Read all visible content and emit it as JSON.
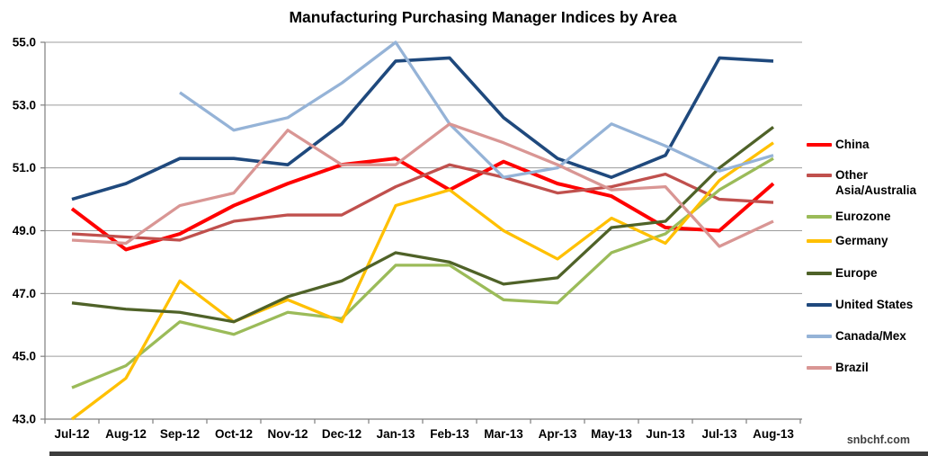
{
  "watermark": "snbchf.com",
  "chart_data": {
    "type": "line",
    "title": "Manufacturing Purchasing Manager Indices by Area",
    "xlabel": "",
    "ylabel": "",
    "grid": true,
    "legend_position": "right",
    "categories": [
      "Jul-12",
      "Aug-12",
      "Sep-12",
      "Oct-12",
      "Nov-12",
      "Dec-12",
      "Jan-13",
      "Feb-13",
      "Mar-13",
      "Apr-13",
      "May-13",
      "Jun-13",
      "Jul-13",
      "Aug-13"
    ],
    "y_axis": {
      "min": 43.0,
      "max": 55.0,
      "tick_interval": 2.0,
      "tick_labels": [
        "55.0",
        "53.0",
        "51.0",
        "49.0",
        "47.0",
        "45.0",
        "43.0"
      ]
    },
    "series": [
      {
        "name": "China",
        "color": "#FF0000",
        "width": 4,
        "values": [
          49.7,
          48.4,
          48.9,
          49.8,
          50.5,
          51.1,
          51.3,
          50.3,
          51.2,
          50.5,
          50.1,
          49.1,
          49.0,
          50.5
        ]
      },
      {
        "name": "Other Asia/Australia",
        "color": "#C0504D",
        "width": 3.3,
        "values": [
          48.9,
          48.8,
          48.7,
          49.3,
          49.5,
          49.5,
          50.4,
          51.1,
          50.7,
          50.2,
          50.4,
          50.8,
          50.0,
          49.9
        ]
      },
      {
        "name": "Eurozone",
        "color": "#9BBB59",
        "width": 3.3,
        "values": [
          44.0,
          44.7,
          46.1,
          45.7,
          46.4,
          46.2,
          47.9,
          47.9,
          46.8,
          46.7,
          48.3,
          48.9,
          50.3,
          51.3
        ]
      },
      {
        "name": "Germany",
        "color": "#FFC000",
        "width": 3.3,
        "values": [
          43.0,
          44.3,
          47.4,
          46.1,
          46.8,
          46.1,
          49.8,
          50.3,
          49.0,
          48.1,
          49.4,
          48.6,
          50.6,
          51.8
        ]
      },
      {
        "name": "Europe",
        "color": "#4F6228",
        "width": 3.3,
        "values": [
          46.7,
          46.5,
          46.4,
          46.1,
          46.9,
          47.4,
          48.3,
          48.0,
          47.3,
          47.5,
          49.1,
          49.3,
          51.0,
          52.3
        ]
      },
      {
        "name": "United States",
        "color": "#1F497D",
        "width": 3.6,
        "values": [
          50.0,
          50.5,
          51.3,
          51.3,
          51.1,
          52.4,
          54.4,
          54.5,
          52.6,
          51.3,
          50.7,
          51.4,
          54.5,
          54.4
        ]
      },
      {
        "name": "Canada/Mex",
        "color": "#95B3D7",
        "width": 3.3,
        "values": [
          null,
          null,
          53.4,
          52.2,
          52.6,
          53.7,
          55.0,
          52.4,
          50.7,
          51.0,
          52.4,
          51.7,
          50.9,
          51.4
        ]
      },
      {
        "name": "Brazil",
        "color": "#D99694",
        "width": 3.3,
        "values": [
          48.7,
          48.6,
          49.8,
          50.2,
          52.2,
          51.1,
          51.1,
          52.4,
          51.8,
          51.1,
          50.3,
          50.4,
          48.5,
          49.3
        ]
      }
    ]
  }
}
